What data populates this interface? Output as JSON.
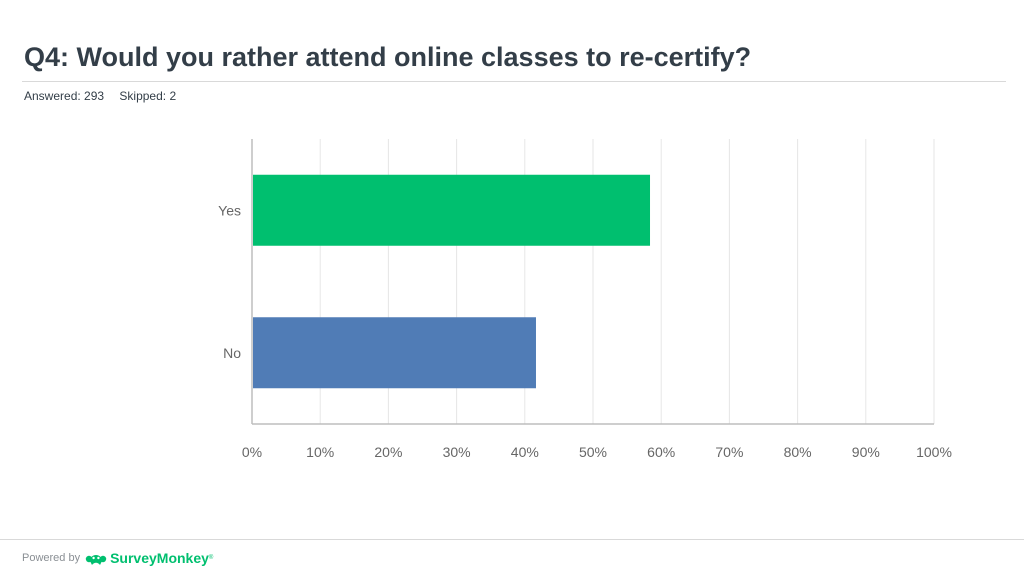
{
  "header": {
    "title": "Q4: Would you rather attend online classes to re-certify?",
    "answered": "Answered: 293",
    "skipped": "Skipped: 2"
  },
  "chart_data": {
    "type": "bar",
    "orientation": "horizontal",
    "categories": [
      "Yes",
      "No"
    ],
    "values": [
      58.36,
      41.64
    ],
    "value_unit": "%",
    "bar_colors": [
      "#00bf6f",
      "#507cb6"
    ],
    "xlim": [
      0,
      100
    ],
    "xticks": [
      "0%",
      "10%",
      "20%",
      "30%",
      "40%",
      "50%",
      "60%",
      "70%",
      "80%",
      "90%",
      "100%"
    ],
    "grid": true,
    "legend": "none"
  },
  "footer": {
    "powered_by": "Powered by",
    "brand": "SurveyMonkey",
    "trademark": "®",
    "brand_color": "#00bf6f"
  }
}
